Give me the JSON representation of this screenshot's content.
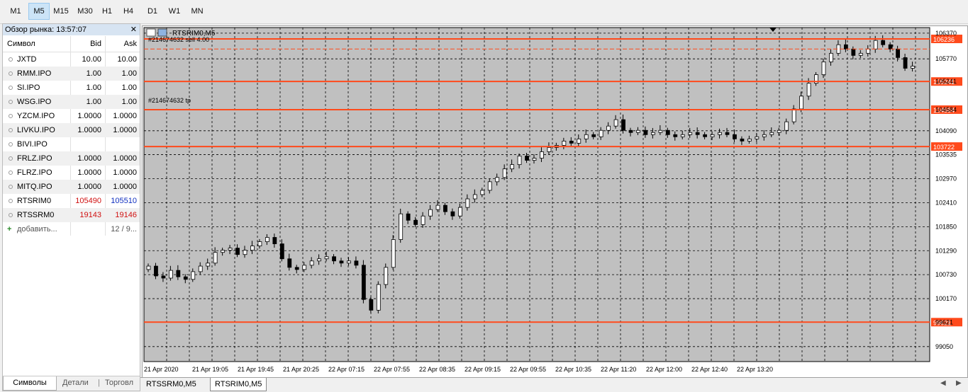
{
  "timeframes": [
    "M1",
    "M5",
    "M15",
    "M30",
    "H1",
    "H4",
    "D1",
    "W1",
    "MN"
  ],
  "active_timeframe": "M5",
  "market_watch": {
    "title": "Обзор рынка: 13:57:07",
    "columns": {
      "symbol": "Символ",
      "bid": "Bid",
      "ask": "Ask"
    },
    "rows": [
      {
        "symbol": "JXTD",
        "bid": "10.00",
        "ask": "10.00"
      },
      {
        "symbol": "RMM.IPO",
        "bid": "1.00",
        "ask": "1.00"
      },
      {
        "symbol": "SI.IPO",
        "bid": "1.00",
        "ask": "1.00"
      },
      {
        "symbol": "WSG.IPO",
        "bid": "1.00",
        "ask": "1.00"
      },
      {
        "symbol": "YZCM.IPO",
        "bid": "1.0000",
        "ask": "1.0000"
      },
      {
        "symbol": "LIVKU.IPO",
        "bid": "1.0000",
        "ask": "1.0000"
      },
      {
        "symbol": "BIVI.IPO",
        "bid": "",
        "ask": ""
      },
      {
        "symbol": "FRLZ.IPO",
        "bid": "1.0000",
        "ask": "1.0000"
      },
      {
        "symbol": "FLRZ.IPO",
        "bid": "1.0000",
        "ask": "1.0000"
      },
      {
        "symbol": "MITQ.IPO",
        "bid": "1.0000",
        "ask": "1.0000"
      },
      {
        "symbol": "RTSRIM0",
        "bid": "105490",
        "ask": "105510"
      },
      {
        "symbol": "RTSSRM0",
        "bid": "19143",
        "ask": "19146"
      }
    ],
    "add_label": "добавить...",
    "count": "12 / 9...",
    "tabs": [
      "Символы",
      "Детали",
      "Торговл"
    ]
  },
  "chart": {
    "title": "RTSRIM0,M5",
    "order_label": "#214674632 sell 4.00",
    "tp_label": "#214674632 tp",
    "price_labels": [
      "106236",
      "105241",
      "104584",
      "103722",
      "99621"
    ],
    "level_colors": {
      "line": "#ff4a1c",
      "grid": "#000000",
      "bg": "#c0c0c0"
    },
    "y_ticks": [
      "106370",
      "105770",
      "105241",
      "104584",
      "104090",
      "103535",
      "102970",
      "102410",
      "101850",
      "101290",
      "100730",
      "100170",
      "99621",
      "99050"
    ],
    "x_ticks": [
      "21 Apr 2020",
      "21 Apr 19:05",
      "21 Apr 19:45",
      "21 Apr 20:25",
      "22 Apr 07:15",
      "22 Apr 07:55",
      "22 Apr 08:35",
      "22 Apr 09:15",
      "22 Apr 09:55",
      "22 Apr 10:35",
      "22 Apr 11:20",
      "22 Apr 12:00",
      "22 Apr 12:40",
      "22 Apr 13:20"
    ]
  },
  "chart_data": {
    "type": "candlestick",
    "title": "RTSRIM0,M5",
    "ylim": [
      98700,
      106500
    ],
    "levels": [
      106236,
      105241,
      104584,
      103722,
      99621
    ],
    "series": [
      {
        "name": "RTSRIM0,M5",
        "values": [
          100930,
          100700,
          100650,
          100830,
          100680,
          100620,
          100800,
          100930,
          101000,
          101250,
          101300,
          101350,
          101200,
          101300,
          101400,
          101500,
          101600,
          101450,
          101100,
          100900,
          100850,
          100950,
          101050,
          101100,
          101150,
          101050,
          101000,
          101050,
          100950,
          100150,
          99900,
          100500,
          100900,
          101550,
          102150,
          102000,
          101900,
          102100,
          102250,
          102350,
          102200,
          102100,
          102300,
          102500,
          102600,
          102700,
          102900,
          103000,
          103200,
          103300,
          103500,
          103400,
          103450,
          103600,
          103700,
          103750,
          103850,
          103800,
          103900,
          104000,
          103950,
          104100,
          104200,
          104350,
          104100,
          104050,
          104100,
          104000,
          104050,
          104100,
          104000,
          103950,
          104000,
          104050,
          104000,
          103950,
          104000,
          104050,
          104000,
          103900,
          103850,
          103900,
          103950,
          104000,
          104050,
          104100,
          104300,
          104600,
          104900,
          105200,
          105400,
          105700,
          105900,
          106100,
          106000,
          105850,
          105900,
          106000,
          106200,
          106100,
          106000,
          105800,
          105550,
          105600
        ]
      }
    ]
  }
}
